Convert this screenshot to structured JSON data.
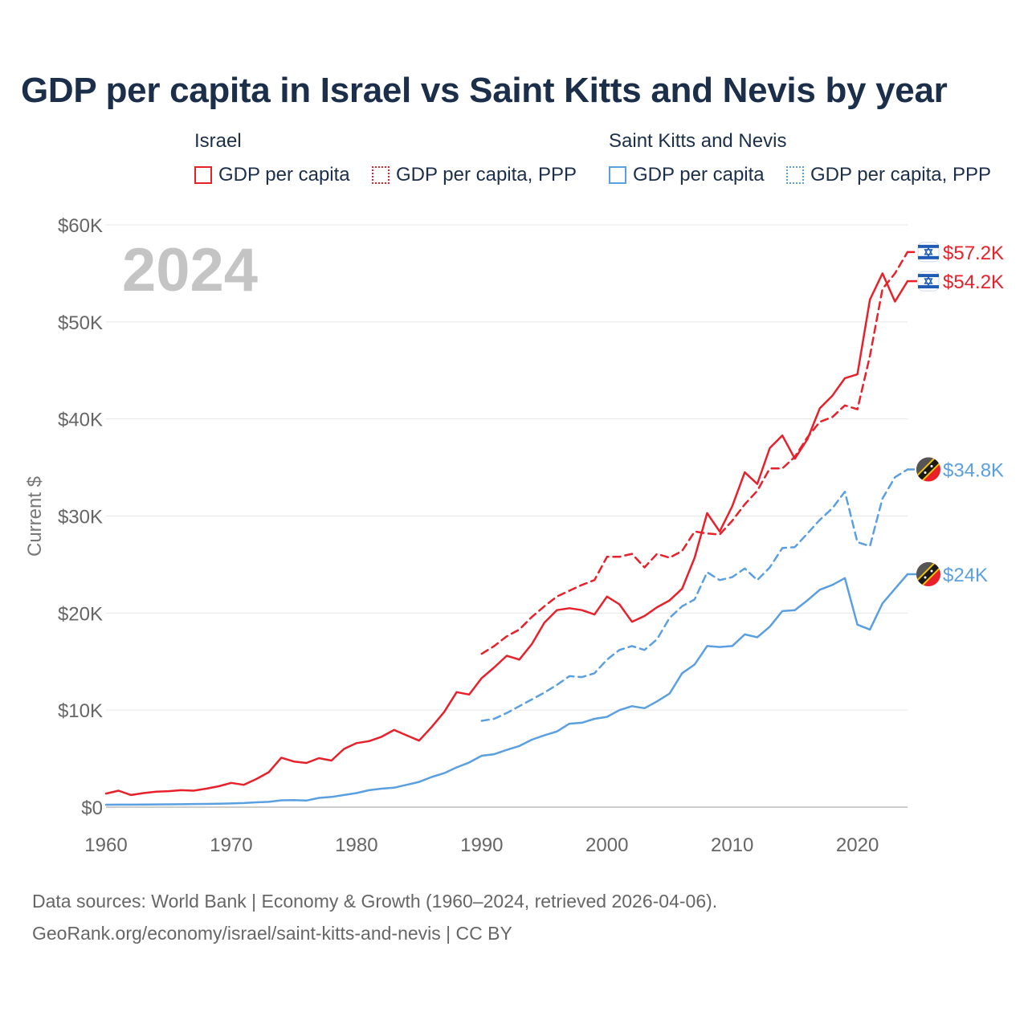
{
  "title": "GDP per capita in Israel vs Saint Kitts and Nevis by year",
  "legend": {
    "groups": [
      {
        "name": "Israel",
        "color": "#e8202a",
        "items": [
          {
            "label": "GDP per capita",
            "style": "solid"
          },
          {
            "label": "GDP per capita, PPP",
            "style": "dotted"
          }
        ]
      },
      {
        "name": "Saint Kitts and Nevis",
        "color": "#5a9fe0",
        "items": [
          {
            "label": "GDP per capita",
            "style": "solid"
          },
          {
            "label": "GDP per capita, PPP",
            "style": "dotted"
          }
        ]
      }
    ]
  },
  "year_label": "2024",
  "source": {
    "line1": "Data sources: World Bank | Economy & Growth (1960–2024, retrieved 2026-04-06).",
    "line2": "GeoRank.org/economy/israel/saint-kitts-and-nevis | CC BY"
  },
  "chart_data": {
    "type": "line",
    "title": "GDP per capita in Israel vs Saint Kitts and Nevis by year",
    "xlabel": "",
    "ylabel": "Current $",
    "xlim": [
      1960,
      2024
    ],
    "ylim": [
      0,
      60000
    ],
    "xticks": [
      1960,
      1970,
      1980,
      1990,
      2000,
      2010,
      2020
    ],
    "yticks": [
      0,
      10000,
      20000,
      30000,
      40000,
      50000,
      60000
    ],
    "ytick_labels": [
      "$0",
      "$10K",
      "$20K",
      "$30K",
      "$40K",
      "$50K",
      "$60K"
    ],
    "grid": true,
    "series": [
      {
        "name": "Israel GDP per capita",
        "country": "Israel",
        "color": "#e8202a",
        "dash": false,
        "end_label": "$54.2K",
        "x": [
          1960,
          1961,
          1962,
          1963,
          1964,
          1965,
          1966,
          1967,
          1968,
          1969,
          1970,
          1971,
          1972,
          1973,
          1974,
          1975,
          1976,
          1977,
          1978,
          1979,
          1980,
          1981,
          1982,
          1983,
          1984,
          1985,
          1986,
          1987,
          1988,
          1989,
          1990,
          1991,
          1992,
          1993,
          1994,
          1995,
          1996,
          1997,
          1998,
          1999,
          2000,
          2001,
          2002,
          2003,
          2004,
          2005,
          2006,
          2007,
          2008,
          2009,
          2010,
          2011,
          2012,
          2013,
          2014,
          2015,
          2016,
          2017,
          2018,
          2019,
          2020,
          2021,
          2022,
          2023,
          2024
        ],
        "values": [
          1400,
          1700,
          1250,
          1450,
          1600,
          1650,
          1750,
          1700,
          1900,
          2150,
          2500,
          2300,
          2900,
          3600,
          5100,
          4700,
          4550,
          5050,
          4800,
          6000,
          6600,
          6800,
          7250,
          7950,
          7400,
          6850,
          8250,
          9800,
          11850,
          11600,
          13300,
          14400,
          15600,
          15200,
          16800,
          19000,
          20300,
          20500,
          20300,
          19850,
          21700,
          20900,
          19100,
          19700,
          20600,
          21300,
          22500,
          25700,
          30300,
          28400,
          31000,
          34500,
          33300,
          37000,
          38300,
          35900,
          37900,
          41100,
          42400,
          44200,
          44600,
          52300,
          55000,
          52100,
          54200
        ]
      },
      {
        "name": "Israel GDP per capita, PPP",
        "country": "Israel",
        "color": "#e8202a",
        "dash": true,
        "end_label": "$57.2K",
        "x": [
          1990,
          1991,
          1992,
          1993,
          1994,
          1995,
          1996,
          1997,
          1998,
          1999,
          2000,
          2001,
          2002,
          2003,
          2004,
          2005,
          2006,
          2007,
          2008,
          2009,
          2010,
          2011,
          2012,
          2013,
          2014,
          2015,
          2016,
          2017,
          2018,
          2019,
          2020,
          2021,
          2022,
          2023,
          2024
        ],
        "values": [
          15800,
          16600,
          17600,
          18300,
          19600,
          20700,
          21700,
          22300,
          22900,
          23400,
          25800,
          25800,
          26100,
          24700,
          26100,
          25700,
          26400,
          28400,
          28200,
          28100,
          29500,
          31200,
          32600,
          34900,
          34900,
          36100,
          38100,
          39700,
          40200,
          41400,
          41000,
          46500,
          53400,
          55000,
          57200
        ]
      },
      {
        "name": "Saint Kitts and Nevis GDP per capita",
        "country": "Saint Kitts and Nevis",
        "color": "#5a9fe0",
        "dash": false,
        "end_label": "$24K",
        "x": [
          1960,
          1961,
          1962,
          1963,
          1964,
          1965,
          1966,
          1967,
          1968,
          1969,
          1970,
          1971,
          1972,
          1973,
          1974,
          1975,
          1976,
          1977,
          1978,
          1979,
          1980,
          1981,
          1982,
          1983,
          1984,
          1985,
          1986,
          1987,
          1988,
          1989,
          1990,
          1991,
          1992,
          1993,
          1994,
          1995,
          1996,
          1997,
          1998,
          1999,
          2000,
          2001,
          2002,
          2003,
          2004,
          2005,
          2006,
          2007,
          2008,
          2009,
          2010,
          2011,
          2012,
          2013,
          2014,
          2015,
          2016,
          2017,
          2018,
          2019,
          2020,
          2021,
          2022,
          2023,
          2024
        ],
        "values": [
          250,
          260,
          260,
          270,
          280,
          290,
          300,
          320,
          330,
          350,
          380,
          420,
          500,
          550,
          700,
          720,
          680,
          950,
          1050,
          1250,
          1450,
          1750,
          1900,
          2000,
          2300,
          2600,
          3100,
          3500,
          4100,
          4600,
          5300,
          5450,
          5900,
          6300,
          6950,
          7400,
          7800,
          8600,
          8700,
          9100,
          9300,
          10000,
          10400,
          10200,
          10900,
          11700,
          13800,
          14700,
          16600,
          16500,
          16600,
          17800,
          17500,
          18600,
          20200,
          20300,
          21300,
          22400,
          22900,
          23600,
          18800,
          18300,
          21000,
          22500,
          24000
        ]
      },
      {
        "name": "Saint Kitts and Nevis GDP per capita, PPP",
        "country": "Saint Kitts and Nevis",
        "color": "#5a9fe0",
        "dash": true,
        "end_label": "$34.8K",
        "x": [
          1990,
          1991,
          1992,
          1993,
          1994,
          1995,
          1996,
          1997,
          1998,
          1999,
          2000,
          2001,
          2002,
          2003,
          2004,
          2005,
          2006,
          2007,
          2008,
          2009,
          2010,
          2011,
          2012,
          2013,
          2014,
          2015,
          2016,
          2017,
          2018,
          2019,
          2020,
          2021,
          2022,
          2023,
          2024
        ],
        "values": [
          8900,
          9100,
          9700,
          10400,
          11100,
          11800,
          12600,
          13500,
          13400,
          13800,
          15200,
          16200,
          16600,
          16200,
          17300,
          19500,
          20700,
          21400,
          24200,
          23400,
          23700,
          24600,
          23400,
          24700,
          26700,
          26800,
          28200,
          29600,
          30800,
          32500,
          27300,
          26900,
          31800,
          34000,
          34800
        ]
      }
    ]
  }
}
